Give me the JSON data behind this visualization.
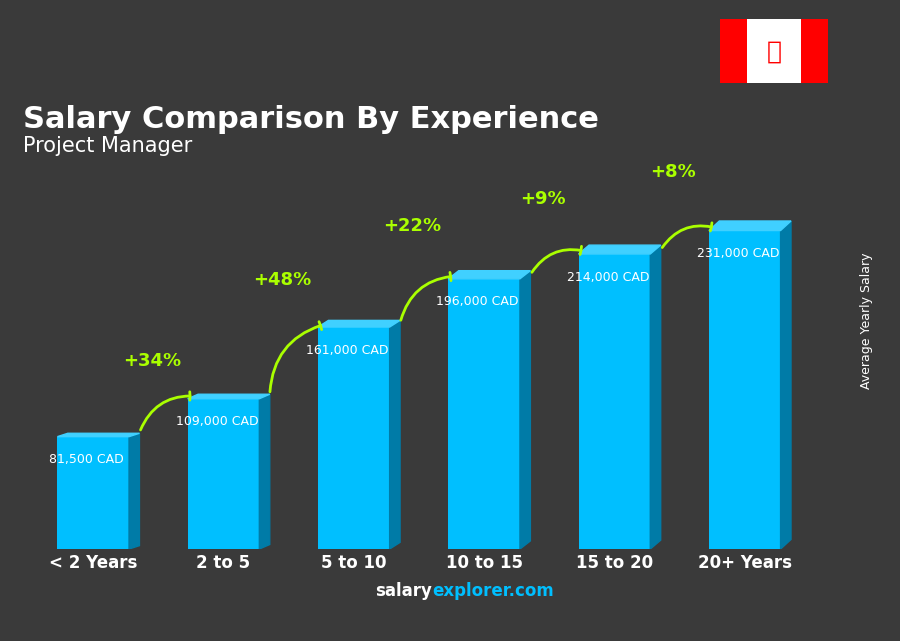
{
  "title": "Salary Comparison By Experience",
  "subtitle": "Project Manager",
  "ylabel": "Average Yearly Salary",
  "footer": "salaryexplorer.com",
  "categories": [
    "< 2 Years",
    "2 to 5",
    "5 to 10",
    "10 to 15",
    "15 to 20",
    "20+ Years"
  ],
  "values": [
    81500,
    109000,
    161000,
    196000,
    214000,
    231000
  ],
  "value_labels": [
    "81,500 CAD",
    "109,000 CAD",
    "161,000 CAD",
    "196,000 CAD",
    "214,000 CAD",
    "231,000 CAD"
  ],
  "pct_labels": [
    "+34%",
    "+48%",
    "+22%",
    "+9%",
    "+8%"
  ],
  "bar_color_face": "#00BFFF",
  "bar_color_light": "#87DFFF",
  "bar_color_dark": "#0099CC",
  "bar_color_top": "#00D4FF",
  "background_color": "#2a2a2a",
  "title_color": "#FFFFFF",
  "subtitle_color": "#FFFFFF",
  "label_color": "#FFFFFF",
  "pct_color": "#AAFF00",
  "arrow_color": "#AAFF00",
  "footer_salary_color": "#FFFFFF",
  "footer_explorer_color": "#00BFFF"
}
